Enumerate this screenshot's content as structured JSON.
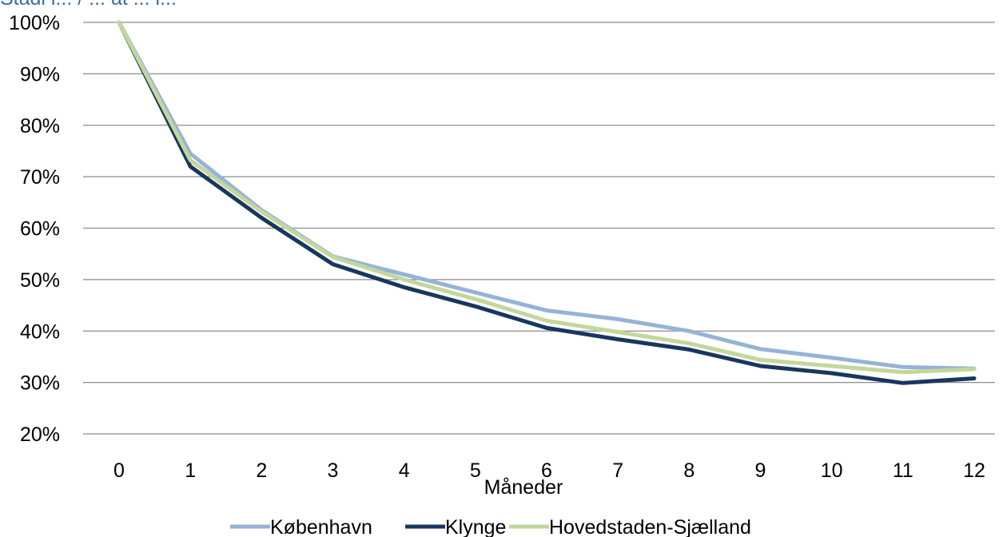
{
  "top_partial_text": "Stadi i... / ... at ... i...",
  "chart_data": {
    "type": "line",
    "xlabel": "Måneder",
    "ylabel": "",
    "x": [
      0,
      1,
      2,
      3,
      4,
      5,
      6,
      7,
      8,
      9,
      10,
      11,
      12
    ],
    "ylim": [
      20,
      100
    ],
    "yticks": [
      20,
      30,
      40,
      50,
      60,
      70,
      80,
      90,
      100
    ],
    "ytick_labels": [
      "20%",
      "30%",
      "40%",
      "50%",
      "60%",
      "70%",
      "80%",
      "90%",
      "100%"
    ],
    "grid": "horizontal",
    "legend_position": "bottom",
    "series": [
      {
        "name": "København",
        "color": "#95b3d7",
        "values": [
          100,
          74.5,
          63.5,
          54.5,
          51,
          47.5,
          44,
          42.3,
          40,
          36.5,
          34.8,
          33,
          32.7
        ]
      },
      {
        "name": "Klynge",
        "color": "#17375e",
        "values": [
          100,
          72,
          62,
          53,
          48.5,
          44.8,
          40.6,
          38.4,
          36.4,
          33.2,
          31.8,
          29.9,
          30.8
        ]
      },
      {
        "name": "Hovedstaden-Sjælland",
        "color": "#c4d79b",
        "values": [
          100,
          73.2,
          63.2,
          54.4,
          50,
          46.2,
          42,
          39.8,
          37.6,
          34.4,
          33.2,
          32,
          32.6
        ]
      }
    ]
  }
}
